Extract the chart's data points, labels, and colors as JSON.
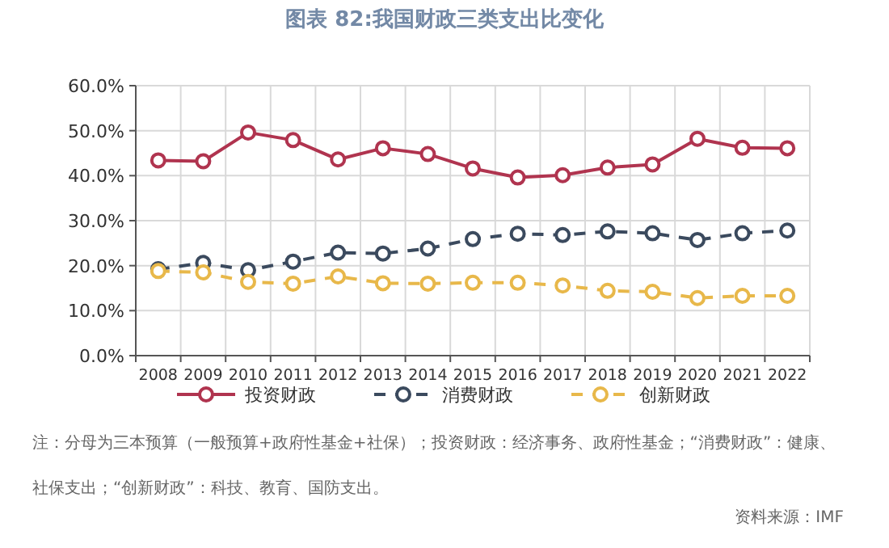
{
  "chart_data": {
    "type": "line",
    "title": "图表 82:我国财政三类支出比变化",
    "categories": [
      "2008",
      "2009",
      "2010",
      "2011",
      "2012",
      "2013",
      "2014",
      "2015",
      "2016",
      "2017",
      "2018",
      "2019",
      "2020",
      "2021",
      "2022"
    ],
    "series": [
      {
        "name": "投资财政",
        "color": "#b0344f",
        "line_style": "solid",
        "values": [
          43.4,
          43.2,
          49.6,
          47.9,
          43.6,
          46.1,
          44.8,
          41.6,
          39.6,
          40.1,
          41.8,
          42.5,
          48.2,
          46.2,
          46.1
        ]
      },
      {
        "name": "消费财政",
        "color": "#3b4a5e",
        "line_style": "dashed",
        "values": [
          19.2,
          20.6,
          19.0,
          20.9,
          22.9,
          22.7,
          23.8,
          25.9,
          27.1,
          26.8,
          27.6,
          27.2,
          25.7,
          27.2,
          27.8
        ]
      },
      {
        "name": "创新财政",
        "color": "#e8b84a",
        "line_style": "dashed",
        "values": [
          18.8,
          18.5,
          16.4,
          16.0,
          17.6,
          16.1,
          16.0,
          16.2,
          16.2,
          15.6,
          14.4,
          14.2,
          12.8,
          13.3,
          13.3
        ]
      }
    ],
    "ylim": [
      0,
      60
    ],
    "yticks": [
      {
        "value": 0,
        "label": "0.0%"
      },
      {
        "value": 10,
        "label": "10.0%"
      },
      {
        "value": 20,
        "label": "20.0%"
      },
      {
        "value": 30,
        "label": "30.0%"
      },
      {
        "value": 40,
        "label": "40.0%"
      },
      {
        "value": 50,
        "label": "50.0%"
      },
      {
        "value": 60,
        "label": "60.0%"
      }
    ],
    "marker": "circle",
    "grid": true,
    "legend": "bottom",
    "annotations": [
      "注：分母为三本预算（一般预算+政府性基金+社保）；投资财政：经济事务、政府性基金；“消费财政”：健康、社保支出；“创新财政”：科技、教育、国防支出。",
      "资料来源：IMF"
    ]
  }
}
